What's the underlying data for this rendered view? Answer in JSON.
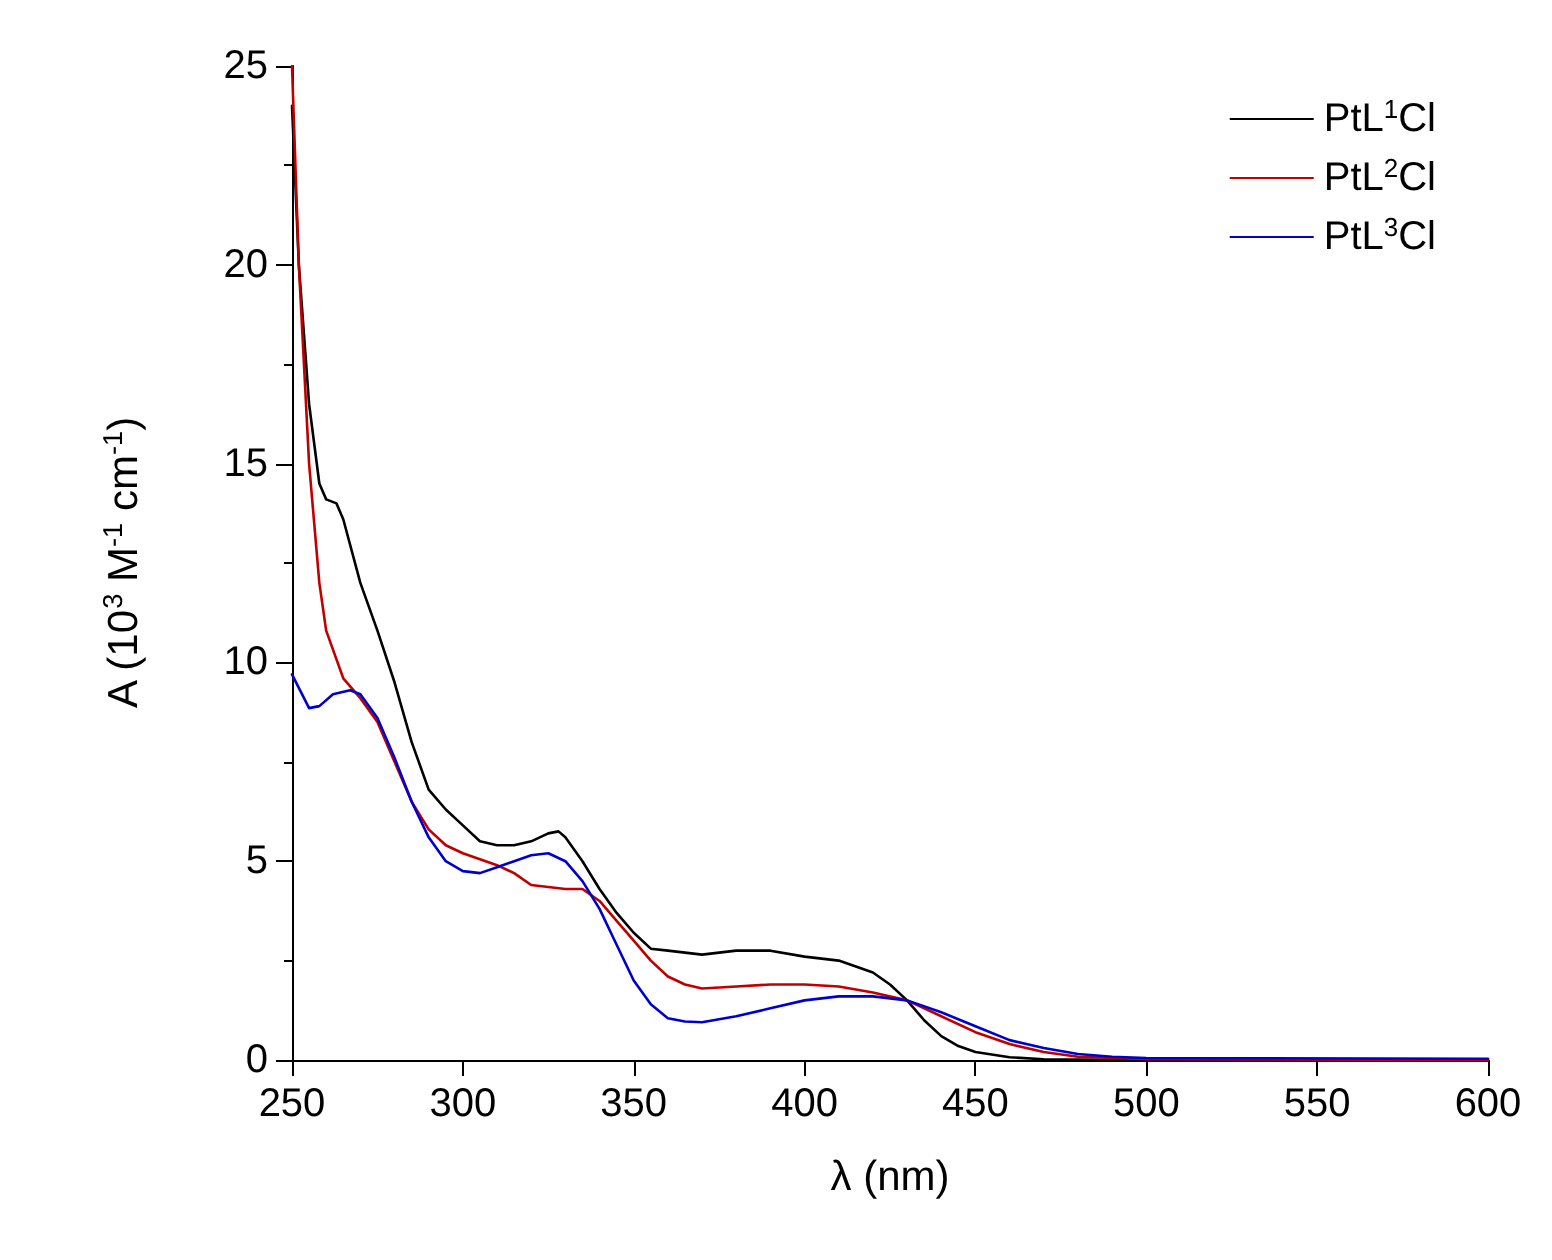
{
  "chart_data": {
    "type": "line",
    "xlabel": "λ (nm)",
    "ylabel": "A (10$^{3}$ M$^{-1}$ cm$^{-1}$)",
    "xlim": [
      250,
      600
    ],
    "xticks": [
      250,
      300,
      350,
      400,
      450,
      500,
      550,
      600
    ],
    "ylim": [
      0,
      25
    ],
    "yticks": [
      0,
      5,
      10,
      15,
      20,
      25
    ],
    "grid": false,
    "legend": "top right",
    "marker": "none",
    "line_style": "solid",
    "series": [
      {
        "name": "PtL$^{1}$Cl",
        "color": "#000000",
        "x": [
          250,
          252,
          255,
          258,
          260,
          263,
          265,
          270,
          275,
          280,
          285,
          290,
          295,
          300,
          305,
          310,
          315,
          320,
          325,
          328,
          330,
          335,
          340,
          345,
          350,
          355,
          360,
          370,
          380,
          390,
          400,
          410,
          420,
          425,
          430,
          435,
          440,
          445,
          450,
          460,
          470,
          500,
          600
        ],
        "values": [
          24,
          20,
          16.5,
          14.5,
          14.1,
          14,
          13.6,
          12,
          10.8,
          9.5,
          8,
          6.8,
          6.3,
          5.9,
          5.5,
          5.4,
          5.4,
          5.5,
          5.7,
          5.75,
          5.6,
          5,
          4.3,
          3.7,
          3.2,
          2.8,
          2.75,
          2.65,
          2.75,
          2.75,
          2.6,
          2.5,
          2.2,
          1.9,
          1.5,
          1,
          0.6,
          0.35,
          0.2,
          0.07,
          0.02,
          0,
          0
        ]
      },
      {
        "name": "PtL$^{2}$Cl",
        "color": "#c00000",
        "x": [
          250,
          252,
          255,
          258,
          260,
          265,
          270,
          275,
          280,
          285,
          290,
          295,
          300,
          310,
          315,
          320,
          325,
          330,
          335,
          340,
          345,
          350,
          355,
          360,
          365,
          370,
          380,
          390,
          400,
          410,
          420,
          430,
          440,
          450,
          460,
          470,
          480,
          500,
          600
        ],
        "values": [
          25,
          20,
          15,
          12,
          10.8,
          9.6,
          9.1,
          8.5,
          7.5,
          6.5,
          5.8,
          5.4,
          5.2,
          4.9,
          4.7,
          4.4,
          4.35,
          4.3,
          4.3,
          4,
          3.5,
          3,
          2.5,
          2.1,
          1.9,
          1.8,
          1.85,
          1.9,
          1.9,
          1.85,
          1.7,
          1.5,
          1.1,
          0.7,
          0.4,
          0.2,
          0.08,
          0.02,
          0
        ]
      },
      {
        "name": "PtL$^{3}$Cl",
        "color": "#0000cc",
        "x": [
          250,
          255,
          258,
          262,
          267,
          270,
          275,
          280,
          285,
          290,
          295,
          300,
          305,
          310,
          315,
          320,
          325,
          330,
          335,
          340,
          345,
          350,
          355,
          360,
          365,
          370,
          380,
          390,
          400,
          410,
          420,
          430,
          440,
          450,
          460,
          470,
          480,
          490,
          500,
          600
        ],
        "values": [
          9.7,
          8.85,
          8.9,
          9.2,
          9.3,
          9.2,
          8.6,
          7.6,
          6.5,
          5.6,
          5,
          4.75,
          4.7,
          4.85,
          5,
          5.15,
          5.2,
          5,
          4.5,
          3.8,
          2.9,
          2,
          1.4,
          1.05,
          0.97,
          0.95,
          1.1,
          1.3,
          1.5,
          1.6,
          1.6,
          1.5,
          1.2,
          0.85,
          0.5,
          0.3,
          0.15,
          0.08,
          0.05,
          0.03
        ]
      }
    ]
  }
}
